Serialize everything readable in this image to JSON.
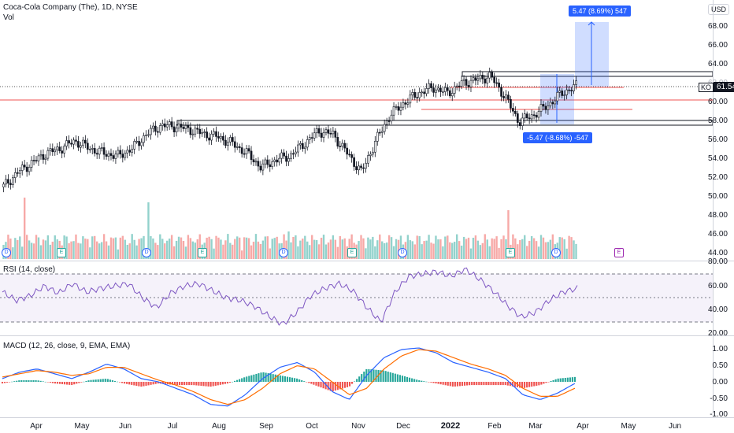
{
  "header": {
    "symbol_title": "Coca-Cola Company (The), 1D, NYSE",
    "vol_label": "Vol",
    "currency": "USD"
  },
  "price_axis": {
    "ticks": [
      "68.00",
      "66.00",
      "64.00",
      "62.00",
      "60.00",
      "58.00",
      "56.00",
      "54.00",
      "52.00",
      "50.00",
      "48.00",
      "46.00",
      "44.00"
    ],
    "last_price_symbol": "KO",
    "last_price": "61.54"
  },
  "measure": {
    "up_label": "5.47 (8.69%) 547",
    "down_label": "-5.47 (-8.68%) -547"
  },
  "rsi": {
    "title": "RSI (14, close)",
    "ticks": [
      "80.00",
      "60.00",
      "40.00",
      "20.00"
    ]
  },
  "macd": {
    "title": "MACD (12, 26, close, 9, EMA, EMA)",
    "ticks": [
      "1.00",
      "0.50",
      "0.00",
      "-0.50",
      "-1.00"
    ]
  },
  "time_axis": {
    "months": [
      "Apr",
      "May",
      "Jun",
      "Jul",
      "Aug",
      "Sep",
      "Oct",
      "Nov",
      "Dec",
      "2022",
      "Feb",
      "Mar",
      "Apr",
      "May",
      "Jun"
    ]
  },
  "events": {
    "dividend": "D",
    "earnings": "E"
  },
  "colors": {
    "up": "#26a69a",
    "down": "#ef5350",
    "accent": "#2962ff",
    "rsi_line": "#7e57c2",
    "macd_line": "#2962ff",
    "signal_line": "#ff6d00"
  },
  "chart_data": {
    "type": "candlestick",
    "title": "Coca-Cola Company (The), 1D, NYSE",
    "ylim": [
      43,
      70
    ],
    "x": [
      "Apr",
      "May",
      "Jun",
      "Jul",
      "Aug",
      "Sep",
      "Oct",
      "Nov",
      "Dec",
      "2022",
      "Feb",
      "Mar",
      "Apr",
      "May",
      "Jun"
    ],
    "close_series": [
      51.0,
      52.5,
      53.5,
      54.5,
      55.0,
      55.8,
      55.0,
      54.5,
      54.2,
      55.0,
      56.5,
      57.4,
      57.3,
      57.0,
      56.5,
      56.2,
      55.5,
      54.5,
      53.0,
      53.8,
      54.2,
      55.5,
      56.8,
      56.5,
      54.5,
      52.5,
      55.8,
      58.5,
      59.8,
      60.8,
      61.4,
      60.8,
      61.8,
      62.2,
      62.6,
      60.5,
      57.8,
      58.5,
      59.5,
      60.8,
      61.54
    ],
    "horizontal_lines": [
      60.05,
      61.55
    ],
    "rsi_values": [
      55,
      48,
      52,
      60,
      54,
      62,
      55,
      58,
      60,
      62,
      50,
      42,
      54,
      60,
      62,
      56,
      50,
      48,
      43,
      35,
      28,
      38,
      52,
      58,
      62,
      56,
      42,
      30,
      55,
      68,
      70,
      72,
      68,
      74,
      66,
      56,
      44,
      34,
      38,
      48,
      55,
      58
    ],
    "rsi_bands": [
      70,
      50,
      30
    ],
    "macd_values": [
      0.1,
      0.3,
      0.4,
      0.25,
      0.1,
      0.3,
      0.55,
      0.4,
      0.1,
      0.0,
      -0.2,
      -0.4,
      -0.7,
      -0.75,
      -0.4,
      0.1,
      0.45,
      0.6,
      0.3,
      -0.3,
      -0.55,
      0.2,
      0.75,
      1.0,
      1.05,
      0.9,
      0.6,
      0.45,
      0.3,
      0.1,
      -0.4,
      -0.55,
      -0.35,
      -0.05
    ],
    "signal_values": [
      0.15,
      0.25,
      0.35,
      0.3,
      0.2,
      0.25,
      0.45,
      0.45,
      0.25,
      0.05,
      -0.1,
      -0.3,
      -0.55,
      -0.7,
      -0.55,
      -0.2,
      0.25,
      0.5,
      0.4,
      0.0,
      -0.4,
      -0.2,
      0.4,
      0.8,
      1.0,
      0.95,
      0.75,
      0.55,
      0.4,
      0.2,
      -0.2,
      -0.45,
      -0.45,
      -0.2
    ]
  }
}
